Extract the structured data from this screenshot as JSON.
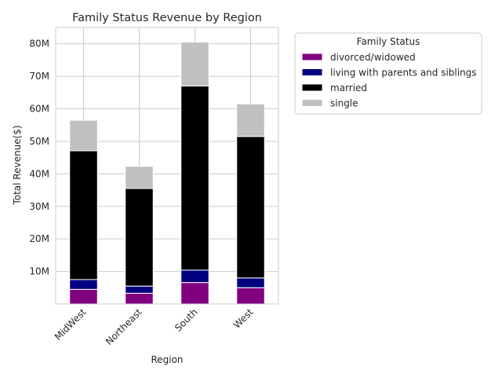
{
  "chart_data": {
    "type": "bar",
    "stacked": true,
    "title": "Family Status Revenue by Region",
    "xlabel": "Region",
    "ylabel": "Total Revenue($)",
    "categories": [
      "MidWest",
      "Northeast",
      "South",
      "West"
    ],
    "ylim": [
      0,
      85
    ],
    "yticks": [
      10,
      20,
      30,
      40,
      50,
      60,
      70,
      80
    ],
    "ytick_labels": [
      "10M",
      "20M",
      "30M",
      "40M",
      "50M",
      "60M",
      "70M",
      "80M"
    ],
    "grid": true,
    "legend": {
      "title": "Family Status",
      "placement": "outside-upper-right"
    },
    "series": [
      {
        "name": "divorced/widowed",
        "color": "#800080",
        "values": [
          4.5,
          3.3,
          6.6,
          5.0
        ]
      },
      {
        "name": "living with parents and siblings",
        "color": "#000080",
        "values": [
          3.0,
          2.2,
          3.8,
          3.0
        ]
      },
      {
        "name": "married",
        "color": "#000000",
        "values": [
          39.6,
          30.0,
          56.6,
          43.5
        ]
      },
      {
        "name": "single",
        "color": "#c0c0c0",
        "values": [
          9.4,
          6.8,
          13.5,
          10.0
        ]
      }
    ]
  }
}
